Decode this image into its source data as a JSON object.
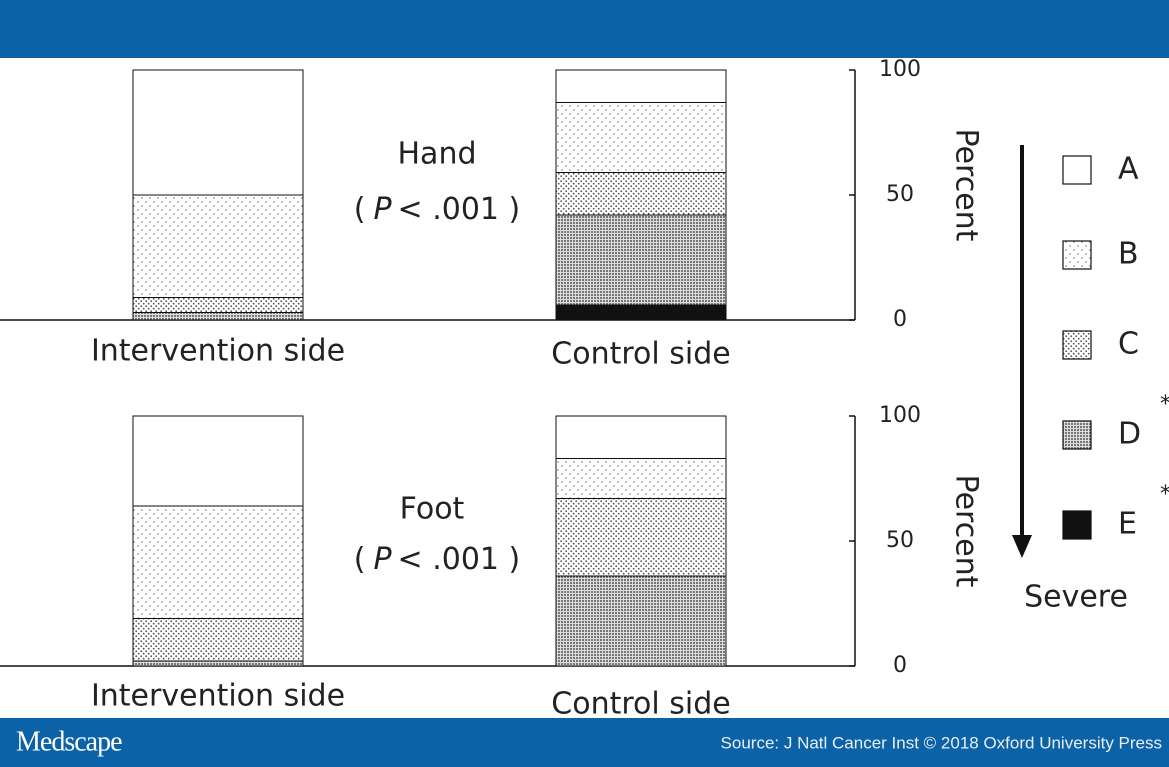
{
  "footer": {
    "brand": "Medscape",
    "source": "Source: J Natl Cancer Inst © 2018 Oxford University Press"
  },
  "chart_data": [
    {
      "type": "stacked-bar",
      "title": "Hand",
      "annotation": {
        "open": "(",
        "p": "P",
        "rest": "< .001 )"
      },
      "categories": [
        "Intervention side",
        "Control side"
      ],
      "ylabel": "Percent",
      "ylim": [
        0,
        100
      ],
      "yticks": [
        0,
        50,
        100
      ],
      "series": [
        {
          "name": "E",
          "pattern": "solid",
          "color": "#111111",
          "values": [
            0,
            6
          ],
          "marker": "*"
        },
        {
          "name": "D",
          "pattern": "crosshatch",
          "color": "#9a9a9a",
          "values": [
            3,
            36
          ],
          "marker": "*"
        },
        {
          "name": "C",
          "pattern": "dense-dots",
          "color": "#555555",
          "values": [
            6,
            17
          ]
        },
        {
          "name": "B",
          "pattern": "sparse-dots",
          "color": "#777777",
          "values": [
            41,
            28
          ]
        },
        {
          "name": "A",
          "pattern": "none",
          "color": "#ffffff",
          "values": [
            50,
            13
          ]
        }
      ]
    },
    {
      "type": "stacked-bar",
      "title": "Foot",
      "annotation": {
        "open": "(",
        "p": "P",
        "rest": "< .001 )"
      },
      "categories": [
        "Intervention side",
        "Control side"
      ],
      "ylabel": "Percent",
      "ylim": [
        0,
        100
      ],
      "yticks": [
        0,
        50,
        100
      ],
      "series": [
        {
          "name": "E",
          "pattern": "solid",
          "color": "#111111",
          "values": [
            0,
            0
          ]
        },
        {
          "name": "D",
          "pattern": "crosshatch",
          "color": "#9a9a9a",
          "values": [
            2,
            36
          ]
        },
        {
          "name": "C",
          "pattern": "dense-dots",
          "color": "#555555",
          "values": [
            17,
            31
          ]
        },
        {
          "name": "B",
          "pattern": "sparse-dots",
          "color": "#777777",
          "values": [
            45,
            16
          ]
        },
        {
          "name": "A",
          "pattern": "none",
          "color": "#ffffff",
          "values": [
            36,
            17
          ]
        }
      ]
    }
  ],
  "legend": {
    "severity_label": "Severe"
  }
}
